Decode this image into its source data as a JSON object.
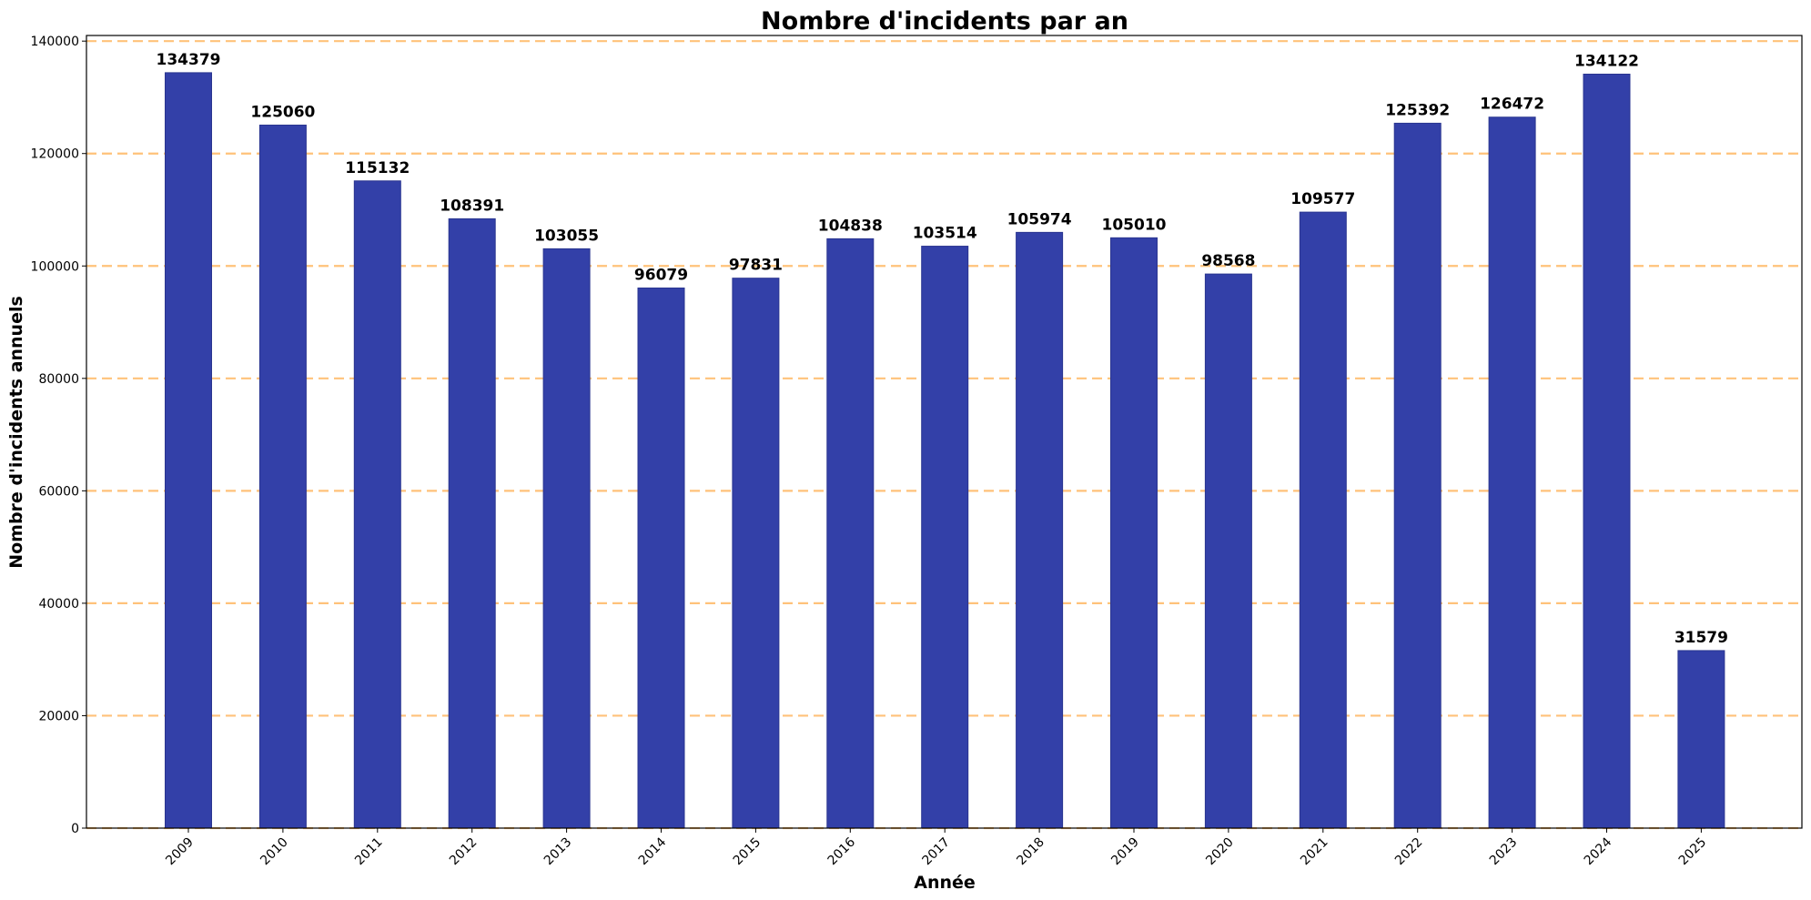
{
  "chart_data": {
    "type": "bar",
    "title": "Nombre d'incidents par an",
    "xlabel": "Année",
    "ylabel": "Nombre d'incidents annuels",
    "categories": [
      "2009",
      "2010",
      "2011",
      "2012",
      "2013",
      "2014",
      "2015",
      "2016",
      "2017",
      "2018",
      "2019",
      "2020",
      "2021",
      "2022",
      "2023",
      "2024",
      "2025"
    ],
    "values": [
      134379,
      125060,
      115132,
      108391,
      103055,
      96079,
      97831,
      104838,
      103514,
      105974,
      105010,
      98568,
      109577,
      125392,
      126472,
      134122,
      31579
    ],
    "ylim": [
      0,
      141000
    ],
    "yticks": [
      0,
      20000,
      40000,
      60000,
      80000,
      100000,
      120000,
      140000
    ],
    "grid": "y-dashed",
    "bar_color": "#3340a8",
    "grid_color": "#ffc27a"
  }
}
